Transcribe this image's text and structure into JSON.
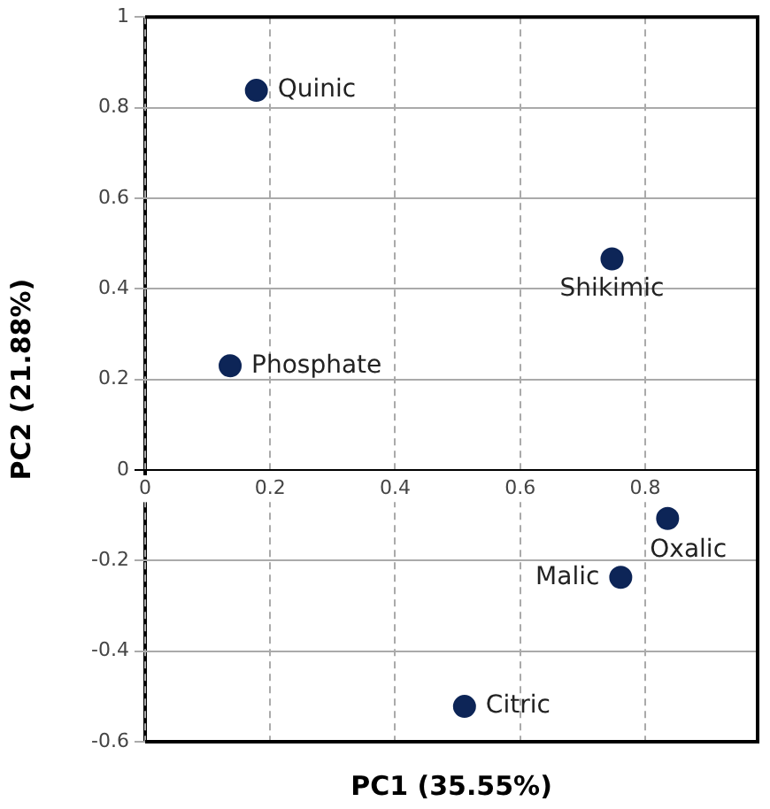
{
  "chart_data": {
    "type": "scatter",
    "xlabel": "PC1 (35.55%)",
    "ylabel": "PC2 (21.88%)",
    "series": [
      {
        "color": "#0d2557",
        "x": [
          0.178,
          0.136,
          0.747,
          0.836,
          0.761,
          0.511
        ],
        "values": [
          0.838,
          0.23,
          0.466,
          -0.107,
          -0.237,
          -0.522
        ]
      }
    ],
    "xlim": [
      0,
      0.98
    ],
    "ylim": [
      -0.6,
      1
    ],
    "xticks": [
      0,
      0.2,
      0.4,
      0.6,
      0.8
    ],
    "yticks": [
      -0.6,
      -0.4,
      -0.2,
      0,
      0.2,
      0.4,
      0.6,
      0.8,
      1
    ],
    "grid": true,
    "marker": "circle",
    "legend": false,
    "annotations": [
      {
        "text": "Quinic",
        "x": 0.178,
        "y": 0.838
      },
      {
        "text": "Phosphate",
        "x": 0.136,
        "y": 0.23
      },
      {
        "text": "Shikimic",
        "x": 0.747,
        "y": 0.466
      },
      {
        "text": "Oxalic",
        "x": 0.836,
        "y": -0.107
      },
      {
        "text": "Malic",
        "x": 0.761,
        "y": -0.237
      },
      {
        "text": "Citric",
        "x": 0.511,
        "y": -0.522
      }
    ]
  }
}
